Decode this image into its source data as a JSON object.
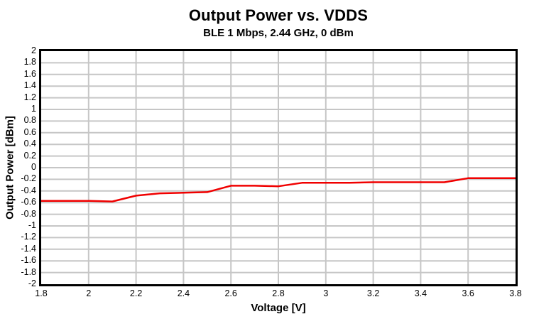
{
  "chart": {
    "title": "Output Power vs. VDDS",
    "subtitle": "BLE 1 Mbps, 2.44 GHz, 0 dBm",
    "xlabel": "Voltage [V]",
    "ylabel": "Output Power [dBm]"
  },
  "chart_data": {
    "type": "line",
    "title": "Output Power vs. VDDS",
    "subtitle": "BLE 1 Mbps, 2.44 GHz, 0 dBm",
    "xlabel": "Voltage [V]",
    "ylabel": "Output Power [dBm]",
    "xlim": [
      1.8,
      3.8
    ],
    "ylim": [
      -2,
      2
    ],
    "xtick_labels": [
      "1.8",
      "2",
      "2.2",
      "2.4",
      "2.6",
      "2.8",
      "3",
      "3.2",
      "3.4",
      "3.6",
      "3.8"
    ],
    "ytick_labels": [
      "2",
      "1.8",
      "1.6",
      "1.4",
      "1.2",
      "1",
      "0.8",
      "0.6",
      "0.4",
      "0.2",
      "0",
      "-0.2",
      "-0.4",
      "-0.6",
      "-0.8",
      "-1",
      "-1.2",
      "-1.4",
      "-1.6",
      "-1.8",
      "-2"
    ],
    "grid": true,
    "legend": "none",
    "series": [
      {
        "name": "Output Power",
        "color": "#f00000",
        "x": [
          1.8,
          1.9,
          2.0,
          2.1,
          2.2,
          2.3,
          2.4,
          2.5,
          2.6,
          2.7,
          2.8,
          2.9,
          3.0,
          3.1,
          3.2,
          3.3,
          3.4,
          3.5,
          3.6,
          3.7,
          3.8
        ],
        "y": [
          -0.57,
          -0.57,
          -0.57,
          -0.58,
          -0.48,
          -0.44,
          -0.43,
          -0.42,
          -0.31,
          -0.31,
          -0.32,
          -0.26,
          -0.26,
          -0.26,
          -0.25,
          -0.25,
          -0.25,
          -0.25,
          -0.18,
          -0.18,
          -0.18
        ]
      }
    ]
  },
  "colors": {
    "background": "#ffffff",
    "text": "#000000",
    "frame": "#000000",
    "grid": "#c6c6c6",
    "line": "#f00000"
  }
}
